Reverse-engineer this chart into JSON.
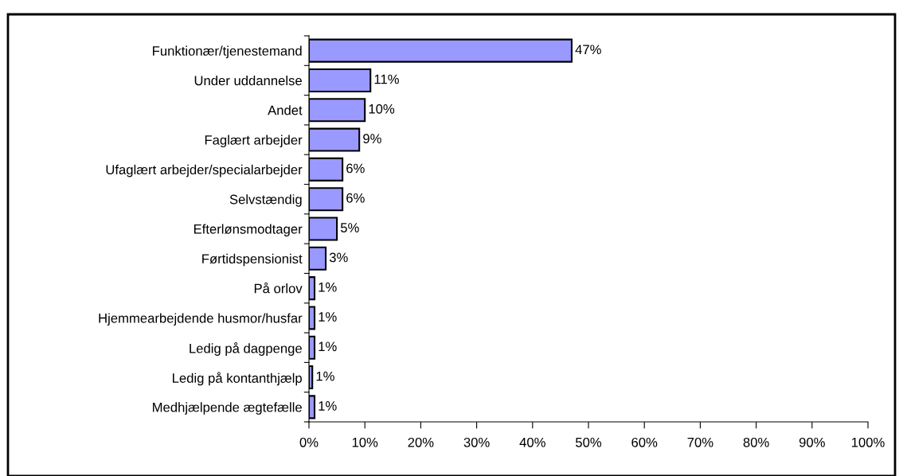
{
  "chart_data": {
    "type": "bar",
    "orientation": "horizontal",
    "categories": [
      "Funktionær/tjenestemand",
      "Under uddannelse",
      "Andet",
      "Faglært arbejder",
      "Ufaglært arbejder/specialarbejder",
      "Selvstændig",
      "Efterlønsmodtager",
      "Førtidspensionist",
      "På orlov",
      "Hjemmearbejdende husmor/husfar",
      "Ledig på dagpenge",
      "Ledig på kontanthjælp",
      "Medhjælpende ægtefælle"
    ],
    "values": [
      47,
      11,
      10,
      9,
      6,
      6,
      5,
      3,
      1,
      1,
      1,
      0.6,
      1
    ],
    "value_labels": [
      "47%",
      "11%",
      "10%",
      "9%",
      "6%",
      "6%",
      "5%",
      "3%",
      "1%",
      "1%",
      "1%",
      "1%",
      "1%"
    ],
    "color": "#9999ff",
    "xlim": [
      0,
      100
    ],
    "xticks": [
      {
        "value": 0,
        "label": "0%"
      },
      {
        "value": 10,
        "label": "10%"
      },
      {
        "value": 20,
        "label": "20%"
      },
      {
        "value": 30,
        "label": "30%"
      },
      {
        "value": 40,
        "label": "40%"
      },
      {
        "value": 50,
        "label": "50%"
      },
      {
        "value": 60,
        "label": "60%"
      },
      {
        "value": 70,
        "label": "70%"
      },
      {
        "value": 80,
        "label": "80%"
      },
      {
        "value": 90,
        "label": "90%"
      },
      {
        "value": 100,
        "label": "100%"
      }
    ],
    "grid": false,
    "legend": false
  }
}
